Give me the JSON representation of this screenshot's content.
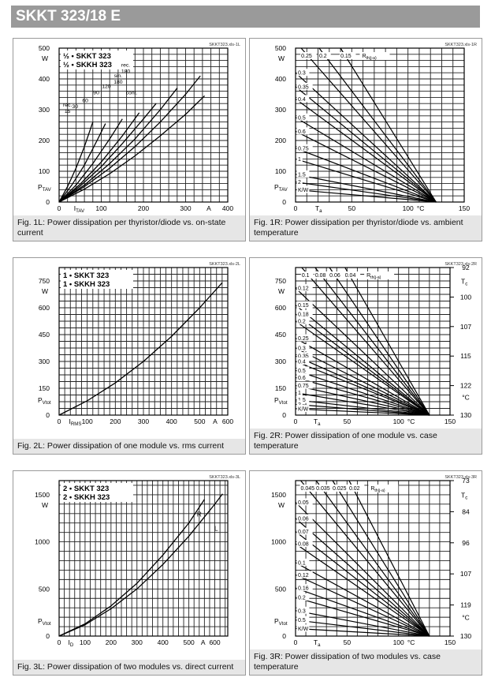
{
  "title": "SKKT 323/18 E",
  "figures": [
    {
      "id": "1L",
      "code": "SKKT323.xls-1L",
      "caption": "Fig. 1L: Power dissipation per thyristor/diode vs. on-state current",
      "chart_data": {
        "type": "line",
        "legend": [
          "½ • SKKT 323",
          "½ • SKKH 323"
        ],
        "xlabel": "I_TAV",
        "xunit": "A",
        "ylabel": "P_TAV",
        "yunit": "W",
        "xlim": [
          0,
          400
        ],
        "ylim": [
          0,
          500
        ],
        "xticks": [
          0,
          100,
          200,
          300,
          400
        ],
        "yticks": [
          0,
          100,
          200,
          300,
          400,
          500
        ],
        "x_minor": 20,
        "y_minor": 20,
        "curve_labels": [
          "rec. 15",
          "30",
          "60",
          "90",
          "120",
          "sin. 180",
          "rec. 180",
          "cont."
        ],
        "series": [
          {
            "name": "rec. 15",
            "x": [
              0,
              20,
              40,
              60,
              80
            ],
            "y": [
              0,
              50,
              110,
              180,
              260
            ]
          },
          {
            "name": "30",
            "x": [
              0,
              30,
              60,
              90,
              110
            ],
            "y": [
              0,
              55,
              120,
              200,
              255
            ]
          },
          {
            "name": "60",
            "x": [
              0,
              40,
              80,
              120,
              150
            ],
            "y": [
              0,
              55,
              125,
              205,
              270
            ]
          },
          {
            "name": "90",
            "x": [
              0,
              50,
              100,
              150,
              190
            ],
            "y": [
              0,
              58,
              130,
              215,
              290
            ]
          },
          {
            "name": "120",
            "x": [
              0,
              50,
              100,
              150,
              200,
              230
            ],
            "y": [
              0,
              52,
              115,
              190,
              270,
              320
            ]
          },
          {
            "name": "sin. 180",
            "x": [
              0,
              60,
              120,
              180,
              240,
              280
            ],
            "y": [
              0,
              55,
              125,
              205,
              300,
              370
            ]
          },
          {
            "name": "rec. 180",
            "x": [
              0,
              60,
              120,
              180,
              240,
              300,
              335
            ],
            "y": [
              0,
              50,
              110,
              180,
              260,
              350,
              410
            ]
          },
          {
            "name": "cont.",
            "x": [
              0,
              60,
              120,
              180,
              240,
              300,
              345
            ],
            "y": [
              0,
              42,
              92,
              150,
              215,
              285,
              345
            ]
          }
        ]
      }
    },
    {
      "id": "1R",
      "code": "SKKT323.xls-1R",
      "caption": "Fig. 1R: Power dissipation per thyristor/diode vs. ambient temperature",
      "chart_data": {
        "type": "line",
        "xlabel": "T_a",
        "xunit": "°C",
        "ylabel": "P_TAV",
        "yunit": "W",
        "xlim": [
          0,
          150
        ],
        "ylim": [
          0,
          500
        ],
        "xticks": [
          0,
          50,
          100,
          150
        ],
        "yticks": [
          0,
          100,
          200,
          300,
          400,
          500
        ],
        "x_minor": 10,
        "y_minor": 20,
        "converge": [
          125,
          0
        ],
        "rth_top": [
          "0.25",
          "0.2",
          "0.15"
        ],
        "rth_top_x": [
          5,
          21,
          40
        ],
        "rth_left": [
          "0.3",
          "0.35",
          "0.4",
          "0.5",
          "0.6",
          "0.75",
          "1",
          "1.5",
          "2",
          "K/W"
        ],
        "rth_left_y": [
          420,
          375,
          335,
          275,
          230,
          175,
          140,
          90,
          65,
          40
        ],
        "rth_label": "R_th(j-a)"
      }
    },
    {
      "id": "2L",
      "code": "SKKT323.xls-2L",
      "caption": "Fig. 2L: Power dissipation of one module vs. rms current",
      "chart_data": {
        "type": "line",
        "legend": [
          "1 • SKKT 323",
          "1 • SKKH 323"
        ],
        "xlabel": "I_RMS",
        "xunit": "A",
        "ylabel": "P_Vtot",
        "yunit": "W",
        "xlim": [
          0,
          600
        ],
        "ylim": [
          0,
          825
        ],
        "xticks": [
          0,
          100,
          200,
          300,
          400,
          500,
          600
        ],
        "yticks": [
          0,
          150,
          300,
          450,
          600,
          750
        ],
        "x_minor": 20,
        "y_minor": 37.5,
        "series": [
          {
            "name": "",
            "x": [
              0,
              100,
              200,
              300,
              400,
              500,
              580
            ],
            "y": [
              0,
              80,
              180,
              300,
              440,
              600,
              740
            ]
          }
        ]
      }
    },
    {
      "id": "2R",
      "code": "SKKT323.xls-2R",
      "caption": "Fig. 2R: Power dissipation of one module vs. case temperature",
      "chart_data": {
        "type": "line",
        "xlabel": "T_a",
        "xunit": "°C",
        "ylabel": "P_Vtot",
        "yunit": "W",
        "xlim": [
          0,
          150
        ],
        "ylim": [
          0,
          825
        ],
        "xticks": [
          0,
          50,
          100,
          150
        ],
        "yticks": [
          0,
          150,
          300,
          450,
          600,
          750
        ],
        "x_minor": 10,
        "y_minor": 37.5,
        "tc_ticks": [
          "92",
          "100",
          "107",
          "115",
          "122",
          "130"
        ],
        "tc_label": "T_c",
        "tc_unit": "°C",
        "converge": [
          130,
          0
        ],
        "rth_top": [
          "0.1",
          "0.08",
          "0.06",
          "0.04"
        ],
        "rth_top_x": [
          6,
          19,
          33,
          48
        ],
        "rth_left": [
          "0.12",
          "0.15",
          "0.18",
          "0.2",
          "0.25",
          "0.3",
          "0.35",
          "0.4",
          "0.5",
          "0.6",
          "0.75",
          "1",
          "1.5",
          "2",
          "K/W"
        ],
        "rth_left_y": [
          710,
          615,
          565,
          525,
          430,
          375,
          330,
          300,
          250,
          210,
          165,
          125,
          85,
          60,
          35
        ],
        "rth_label": "R_th(j-a)"
      }
    },
    {
      "id": "3L",
      "code": "SKKT323.xls-3L",
      "caption": "Fig. 3L: Power dissipation of two modules vs. direct current",
      "chart_data": {
        "type": "line",
        "legend": [
          "2 • SKKT 323",
          "2 • SKKH 323"
        ],
        "xlabel": "I_D",
        "xunit": "A",
        "ylabel": "P_Vtot",
        "yunit": "W",
        "xlim": [
          0,
          650
        ],
        "ylim": [
          0,
          1650
        ],
        "xticks": [
          0,
          100,
          200,
          300,
          400,
          500,
          600
        ],
        "yticks": [
          0,
          500,
          1000,
          1500
        ],
        "x_minor": 20,
        "y_minor": 100,
        "curve_labels": [
          "R",
          "L"
        ],
        "series": [
          {
            "name": "R",
            "x": [
              0,
              100,
              200,
              300,
              400,
              500,
              560
            ],
            "y": [
              0,
              130,
              320,
              560,
              860,
              1200,
              1450
            ]
          },
          {
            "name": "L",
            "x": [
              0,
              100,
              200,
              300,
              400,
              500,
              600,
              630
            ],
            "y": [
              0,
              120,
              290,
              500,
              760,
              1060,
              1400,
              1510
            ]
          }
        ]
      }
    },
    {
      "id": "3R",
      "code": "SKKT323.xls-3R",
      "caption": "Fig. 3R: Power dissipation of two modules vs. case temperature",
      "chart_data": {
        "type": "line",
        "xlabel": "T_a",
        "xunit": "°C",
        "ylabel": "P_Vtot",
        "yunit": "W",
        "xlim": [
          0,
          150
        ],
        "ylim": [
          0,
          1650
        ],
        "xticks": [
          0,
          50,
          100,
          150
        ],
        "yticks": [
          0,
          500,
          1000,
          1500
        ],
        "x_minor": 10,
        "y_minor": 100,
        "tc_ticks": [
          "73",
          "84",
          "96",
          "107",
          "119",
          "130"
        ],
        "tc_label": "T_c",
        "tc_unit": "°C",
        "converge": [
          130,
          0
        ],
        "rth_top": [
          "0.045",
          "0.035",
          "0.025",
          "0.02"
        ],
        "rth_top_x": [
          5,
          20,
          36,
          52
        ],
        "rth_left": [
          "0.05",
          "0.06",
          "0.07",
          "0.08",
          "0.1",
          "0.12",
          "0.16",
          "0.2",
          "0.3",
          "0.5",
          "K/W"
        ],
        "rth_left_y": [
          1420,
          1250,
          1110,
          980,
          780,
          650,
          510,
          410,
          270,
          170,
          80
        ],
        "rth_label": "R_th(j-a)"
      }
    }
  ]
}
